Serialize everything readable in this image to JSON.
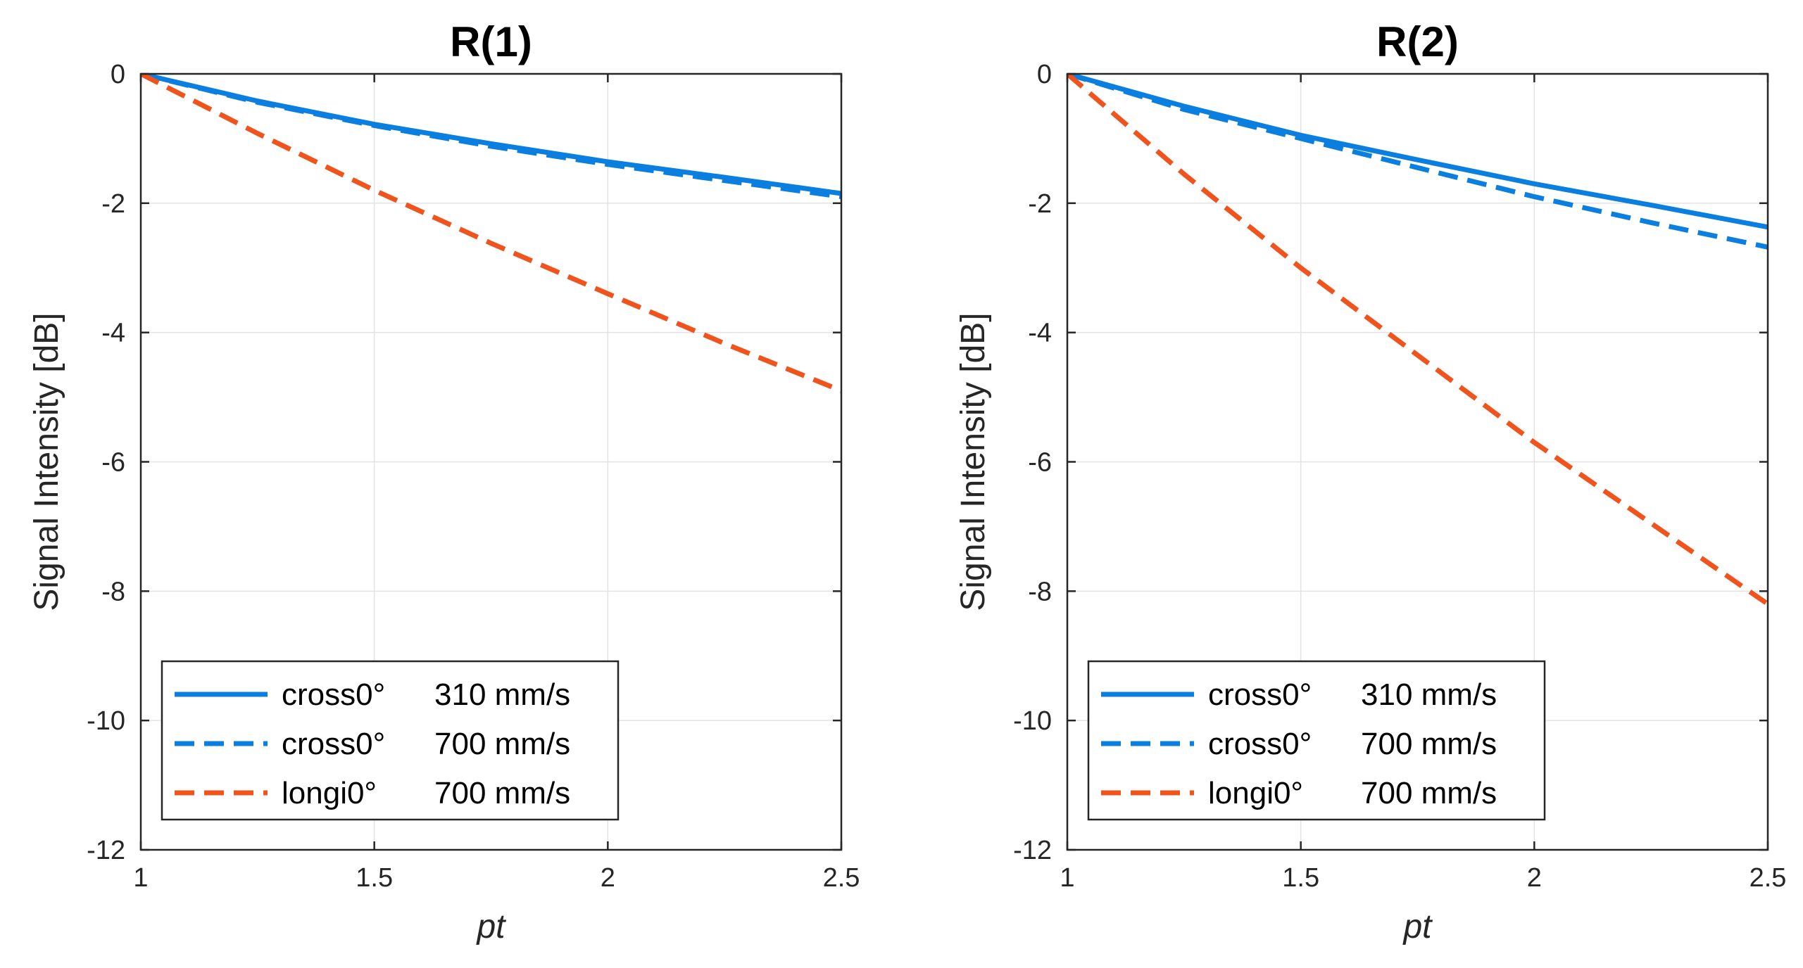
{
  "chart_data": [
    {
      "type": "line",
      "title": "R(1)",
      "xlabel": "pt",
      "ylabel": "Signal Intensity [dB]",
      "xlim": [
        1,
        2.5
      ],
      "ylim": [
        -12,
        0
      ],
      "xticks": [
        1,
        1.5,
        2,
        2.5
      ],
      "xtick_labels": [
        "1",
        "1.5",
        "2",
        "2.5"
      ],
      "yticks": [
        0,
        -2,
        -4,
        -6,
        -8,
        -10,
        -12
      ],
      "ytick_labels": [
        "0",
        "-2",
        "-4",
        "-6",
        "-8",
        "-10",
        "-12"
      ],
      "grid": true,
      "legend_position": "bottom-left",
      "series": [
        {
          "name": "cross0°",
          "label": "310 mm/s",
          "color": "#0a7fe0",
          "style": "solid",
          "x": [
            1,
            1.25,
            1.5,
            1.75,
            2,
            2.25,
            2.5
          ],
          "y": [
            0,
            -0.42,
            -0.78,
            -1.08,
            -1.36,
            -1.6,
            -1.85
          ]
        },
        {
          "name": "cross0°",
          "label": "700 mm/s",
          "color": "#0a7fe0",
          "style": "dashed",
          "x": [
            1,
            1.25,
            1.5,
            1.75,
            2,
            2.25,
            2.5
          ],
          "y": [
            0,
            -0.44,
            -0.8,
            -1.12,
            -1.4,
            -1.65,
            -1.9
          ]
        },
        {
          "name": "longi0°",
          "label": "700 mm/s",
          "color": "#f0531c",
          "style": "dashed",
          "x": [
            1,
            1.25,
            1.5,
            1.75,
            2,
            2.25,
            2.5
          ],
          "y": [
            0,
            -0.92,
            -1.8,
            -2.62,
            -3.4,
            -4.17,
            -4.9
          ]
        }
      ]
    },
    {
      "type": "line",
      "title": "R(2)",
      "xlabel": "pt",
      "ylabel": "Signal Intensity [dB]",
      "xlim": [
        1,
        2.5
      ],
      "ylim": [
        -12,
        0
      ],
      "xticks": [
        1,
        1.5,
        2,
        2.5
      ],
      "xtick_labels": [
        "1",
        "1.5",
        "2",
        "2.5"
      ],
      "yticks": [
        0,
        -2,
        -4,
        -6,
        -8,
        -10,
        -12
      ],
      "ytick_labels": [
        "0",
        "-2",
        "-4",
        "-6",
        "-8",
        "-10",
        "-12"
      ],
      "grid": true,
      "legend_position": "bottom-left",
      "series": [
        {
          "name": "cross0°",
          "label": "310 mm/s",
          "color": "#0a7fe0",
          "style": "solid",
          "x": [
            1,
            1.25,
            1.5,
            1.75,
            2,
            2.25,
            2.5
          ],
          "y": [
            0,
            -0.5,
            -0.95,
            -1.33,
            -1.7,
            -2.03,
            -2.37
          ]
        },
        {
          "name": "cross0°",
          "label": "700 mm/s",
          "color": "#0a7fe0",
          "style": "dashed",
          "x": [
            1,
            1.25,
            1.5,
            1.75,
            2,
            2.25,
            2.5
          ],
          "y": [
            0,
            -0.55,
            -1.0,
            -1.45,
            -1.9,
            -2.3,
            -2.68
          ]
        },
        {
          "name": "longi0°",
          "label": "700 mm/s",
          "color": "#f0531c",
          "style": "dashed",
          "x": [
            1,
            1.25,
            1.5,
            1.75,
            2,
            2.25,
            2.5
          ],
          "y": [
            0,
            -1.55,
            -3.0,
            -4.35,
            -5.7,
            -6.95,
            -8.2
          ]
        }
      ]
    }
  ]
}
